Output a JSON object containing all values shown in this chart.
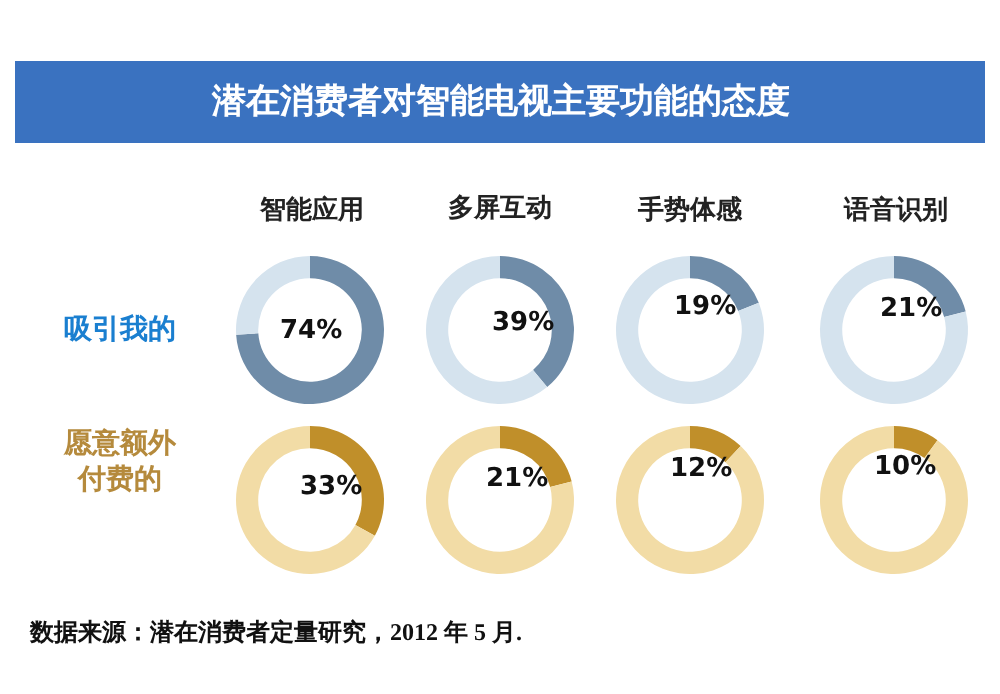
{
  "chart_data": [
    {
      "type": "other",
      "title": "潜在消费者对智能电视主要功能的态度",
      "annotations": [
        "智能应用",
        "多屏互动",
        "手势体感",
        "语音识别",
        "吸引我的",
        "愿意额外付费的",
        "数据来源：潜在消费者定量研究，2012 年 5 月."
      ]
    },
    {
      "type": "donut",
      "categories": [
        null,
        null
      ],
      "values": [
        74,
        26
      ],
      "colors": [
        "#6f8ca8",
        "#d5e3ee"
      ],
      "value_labels": [
        "74%",
        null
      ]
    },
    {
      "type": "donut",
      "categories": [
        null,
        null
      ],
      "values": [
        39,
        61
      ],
      "colors": [
        "#6f8ca8",
        "#d5e3ee"
      ],
      "value_labels": [
        "39%",
        null
      ]
    },
    {
      "type": "donut",
      "categories": [
        null,
        null
      ],
      "values": [
        19,
        81
      ],
      "colors": [
        "#6f8ca8",
        "#d5e3ee"
      ],
      "value_labels": [
        "19%",
        null
      ]
    },
    {
      "type": "donut",
      "categories": [
        null,
        null
      ],
      "values": [
        21,
        79
      ],
      "colors": [
        "#6f8ca8",
        "#d5e3ee"
      ],
      "value_labels": [
        "21%",
        null
      ]
    },
    {
      "type": "donut",
      "categories": [
        null,
        null
      ],
      "values": [
        33,
        67
      ],
      "colors": [
        "#c08f2a",
        "#f2dca6"
      ],
      "value_labels": [
        "33%",
        null
      ]
    },
    {
      "type": "donut",
      "categories": [
        null,
        null
      ],
      "values": [
        21,
        79
      ],
      "colors": [
        "#c08f2a",
        "#f2dca6"
      ],
      "value_labels": [
        "21%",
        null
      ]
    },
    {
      "type": "donut",
      "categories": [
        null,
        null
      ],
      "values": [
        12,
        88
      ],
      "colors": [
        "#c08f2a",
        "#f2dca6"
      ],
      "value_labels": [
        "12%",
        null
      ]
    },
    {
      "type": "donut",
      "categories": [
        null,
        null
      ],
      "values": [
        10,
        90
      ],
      "colors": [
        "#c08f2a",
        "#f2dca6"
      ],
      "value_labels": [
        "10%",
        null
      ]
    }
  ]
}
